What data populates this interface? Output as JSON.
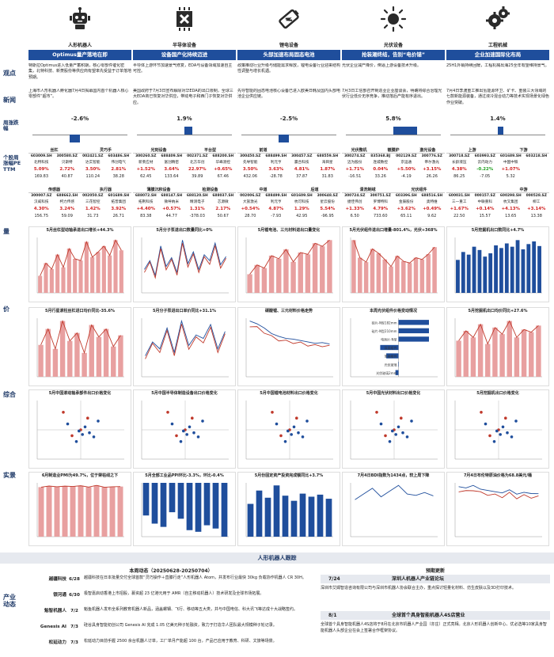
{
  "row_labels": {
    "view": "观点",
    "news": "新闻",
    "weekly": "周涨跌幅",
    "stocks": "个股周涨幅PE TTM",
    "volume": "量",
    "price": "价",
    "composite": "综合",
    "real": "实景",
    "dynamics": "产业动态"
  },
  "sectors": [
    {
      "name": "人形机器人",
      "icon": "robot-icon",
      "banner": "Optimus量产落地在即",
      "view": "特斯拉Optimus进入低量产蓄积期，核心零部件催化密集，北特科技、新菱股份等供应商有望率先受益于订单落地预期。",
      "news": "上海市人形机器人孵化器7月4日揭幕国内首个机器人核心零部件“超市”。",
      "weekly": "-2.6%",
      "weekly_value": -2.6,
      "groups": [
        {
          "label": "丝杠",
          "codes": [
            "603009.SH",
            "300580.SZ",
            "002421.SZ",
            "603486.SH"
          ],
          "names": [
            "北特科技",
            "贝斯特",
            "达实智能",
            "伟创电气"
          ],
          "chg": [
            "5.09%",
            "2.72%",
            "3.50%",
            "2.81%"
          ],
          "pe": [
            "169.83",
            "40.87",
            "110.24",
            "38.28"
          ],
          "subheads": [
            "丝杠",
            "灵巧手"
          ]
        },
        {
          "label": "传感器",
          "codes": [
            "300007.SZ",
            "688662.SH",
            "002050.SZ",
            "601689.SH"
          ],
          "names": [
            "汉威科技",
            "柯力传感",
            "三花智控",
            "拓普集团"
          ],
          "chg": [
            "4.30%",
            "3.24%",
            "1.42%",
            "3.92%"
          ],
          "pe": [
            "156.75",
            "59.09",
            "31.73",
            "26.71"
          ],
          "subheads": [
            "传感器",
            "执行器"
          ]
        }
      ]
    },
    {
      "name": "半导体设备",
      "icon": "chip-icon",
      "banner": "设备国产化持续迈进",
      "view": "半导体上游环节加速景气修复，EDA与设备领域加速自主可控。",
      "news": "美国政府于7月3日宣布解除对华EDA的出口限制，全球三大EDA商已恢复对华供应，带动电子和西门子恢复对华供应。",
      "weekly": "1.9%",
      "weekly_value": 1.9,
      "groups": [
        {
          "label": "光刻设备",
          "codes": [
            "300260.SZ",
            "688409.SH",
            "002371.SZ",
            "688200.SH"
          ],
          "names": [
            "新莱应材",
            "富创精密",
            "北方华创",
            "华峰测控"
          ],
          "chg": [
            "+1.52%",
            "3.64%",
            "22.97%",
            "+0.65%"
          ],
          "pe": [
            "62.45",
            "133.64",
            "39.89",
            "67.46"
          ],
          "subheads": [
            "光刻设备",
            "平台型"
          ]
        },
        {
          "label": "薄膜沉积设备",
          "codes": [
            "688072.SH",
            "688147.SH",
            "688120.SH",
            "688037.SH"
          ],
          "names": [
            "拓荆科技",
            "微导纳米",
            "精测电子",
            "芯源微"
          ],
          "chg": [
            "+4.40%",
            "+0.57%",
            "1.31%",
            "2.17%"
          ],
          "pe": [
            "83.38",
            "44.77",
            "-378.03",
            "50.67"
          ],
          "subheads": [
            "薄膜沉积设备",
            "检测设备"
          ]
        }
      ]
    },
    {
      "name": "锂电设备",
      "icon": "battery-icon",
      "banner": "头部加速布局固态电池",
      "view": "政策推动行业升级与储能需求释放，锂电设备行业迎来结构性调整与增长机遇。",
      "news": "先导智能的固态电池核心设备已进入欧美日韩及国内头部电池企业供应链。",
      "weekly": "-2.5%",
      "weekly_value": -2.5,
      "groups": [
        {
          "label": "前道",
          "codes": [
            "300450.SZ",
            "688499.SH",
            "300457.SZ",
            "688559.SH"
          ],
          "names": [
            "先导智能",
            "利元亨",
            "赢合科技",
            "海目星"
          ],
          "chg": [
            "3.50%",
            "3.63%",
            "4.81%",
            "1.87%"
          ],
          "pe": [
            "432.06",
            "-28.78",
            "37.87",
            "31.83"
          ],
          "subheads": [
            "前道",
            ""
          ]
        },
        {
          "label": "中道",
          "codes": [
            "002006.SZ",
            "688499.SH",
            "601609.SH",
            "300648.SZ"
          ],
          "names": [
            "大族激光",
            "利元亨",
            "杭可科技",
            "星云股份"
          ],
          "chg": [
            "+0.54%",
            "4.87%",
            "1.29%",
            "5.54%"
          ],
          "pe": [
            "28.70",
            "-7.93",
            "42.95",
            "-96.95"
          ],
          "subheads": [
            "中道",
            "后道"
          ]
        }
      ]
    },
    {
      "name": "光伏设备",
      "icon": "sun-icon",
      "banner": "抢装潮终结，告别“电价锚”",
      "view": "光伏企业减产降价，倒逼上游设备技术升级。",
      "news": "7月3日工信部召开制造业企业座谈会，明确将综合治理光伏行业低价无序竞争，推动落后产能有序退出。",
      "weekly": "5.8%",
      "weekly_value": 5.8,
      "groups": [
        {
          "label": "光伏整机",
          "codes": [
            "300274.SZ",
            "835368.BJ",
            "002129.SZ",
            "300776.SZ"
          ],
          "names": [
            "迈为股份",
            "连城数控",
            "京运通",
            "帝尔激光"
          ],
          "chg": [
            "+1.71%",
            "0.04%",
            "+5.50%",
            "+3.15%"
          ],
          "pe": [
            "-16.51",
            "33.26",
            "-4.19",
            "26.26"
          ],
          "subheads": [
            "光伏整机",
            "镀膜炉",
            "激光设备"
          ]
        },
        {
          "label": "清洗制绒",
          "codes": [
            "300724.SZ",
            "300751.SZ",
            "603396.SH",
            "688516.SH"
          ],
          "names": [
            "捷佳伟创",
            "罗博特科",
            "金辰股份",
            "奥特维"
          ],
          "chg": [
            "+1.33%",
            "4.79%",
            "+3.62%",
            "+0.49%"
          ],
          "pe": [
            "6.50",
            "733.60",
            "65.11",
            "9.62"
          ],
          "subheads": [
            "清洗制绒",
            "光伏组件"
          ]
        }
      ]
    },
    {
      "name": "工程机械",
      "icon": "gears-icon",
      "banner": "企业加速国际化布局",
      "view": "25H1外销持续回暖，工程机械出海25全年有望维持景气。",
      "news": "7月4日李渡重工推出氢能源环卫、矿卡、重装三大领域的七款新能源装备，通过液冷混合动力等技术实现场景化绿色作业突破。",
      "weekly": "1.4%",
      "weekly_value": 1.4,
      "groups": [
        {
          "label": "上游",
          "codes": [
            "300718.SZ",
            "603993.SZ",
            "601689.SH",
            "603218.SH"
          ],
          "names": [
            "长龄液压",
            "云内动力",
            "中国中铁",
            ""
          ],
          "chg": [
            "4.38%",
            "-0.22%",
            "+1.07%",
            ""
          ],
          "pe": [
            "86.25",
            "-7.05",
            "5.32",
            ""
          ],
          "subheads": [
            "上游",
            "下游"
          ]
        },
        {
          "label": "中游",
          "codes": [
            "600031.SH",
            "000157.SZ",
            "600298.SH",
            "000528.SZ"
          ],
          "names": [
            "三一重工",
            "中联重科",
            "杭叉集团",
            "柳工"
          ],
          "chg": [
            "+1.67%",
            "+0.14%",
            "+4.13%",
            "+3.14%"
          ],
          "pe": [
            "22.50",
            "15.57",
            "13.65",
            "13.38"
          ],
          "subheads": [
            "",
            "中游"
          ]
        }
      ]
    }
  ],
  "charts": {
    "volume": [
      {
        "title": "5月丝杠型动轴承进出口增长+44.3%",
        "legend": [
          "行星滚柱丝杠进口",
          "行星滚柱丝杠出口"
        ],
        "values": [
          20,
          35,
          28,
          45,
          30,
          52,
          40,
          38,
          60,
          42,
          48,
          55,
          44,
          62,
          50
        ],
        "kind": "bar-line"
      },
      {
        "title": "5月分子泵进出口数量同比+0%",
        "legend": [
          "分子泵进口数量",
          "分子泵出口数量"
        ],
        "values": [
          40,
          55,
          30,
          80,
          45,
          60,
          35,
          90,
          50,
          70,
          40,
          65,
          55,
          85,
          48,
          62
        ],
        "kind": "line2"
      },
      {
        "title": "5月锂电池、三元材料进出口量变化",
        "legend": [
          "锂电池出口",
          "三元材料出口"
        ],
        "values": [
          30,
          45,
          40,
          60,
          55,
          70,
          50,
          65,
          62,
          80,
          75,
          85
        ],
        "kind": "bar-line"
      },
      {
        "title": "5月光伏组件进出口增量-801.4%，光伏+368%",
        "legend": [
          "光伏组件出口",
          "光伏逆变器出口"
        ],
        "values": [
          60,
          40,
          35,
          50,
          45,
          38,
          30,
          42,
          36,
          34,
          40,
          38,
          44,
          52
        ],
        "kind": "bar-line"
      },
      {
        "title": "5月挖掘机出口数同比+4.7%",
        "legend": [
          "挖掘机出口",
          "同比"
        ],
        "values": [
          50,
          62,
          58,
          70,
          65,
          55,
          60,
          72,
          68,
          75,
          70,
          80,
          66,
          74,
          78,
          71
        ],
        "kind": "bar"
      }
    ],
    "price": [
      {
        "title": "5月行星滚柱丝杠进口均价同比-35.6%",
        "values": [
          40,
          60,
          35,
          70,
          45,
          55,
          30,
          65,
          50,
          60,
          38,
          52
        ],
        "kind": "bar-line"
      },
      {
        "title": "5月分子泵进出口单价同比+31.1%",
        "values": [
          30,
          50,
          40,
          70,
          35,
          80,
          45,
          60,
          55,
          75,
          40,
          65
        ],
        "kind": "line2"
      },
      {
        "title": "碳酸锂、三元材料价格走势",
        "values": [
          80,
          76,
          70,
          62,
          58,
          55,
          54,
          52,
          50,
          48,
          49,
          47
        ],
        "kind": "line2"
      },
      {
        "title": "本周光伏组件价格变动情况",
        "bars": [
          {
            "label": "硅片-N型182mm",
            "value": 1.0
          },
          {
            "label": "硅片-N型210mm",
            "value": 1.0
          },
          {
            "label": "电池片-N型",
            "value": 1.0
          },
          {
            "label": "双面组件",
            "value": -0.6
          },
          {
            "label": "单面组件",
            "value": -0.4
          },
          {
            "label": "光伏玻璃",
            "value": 0.0
          },
          {
            "label": "光伏玻璃2mm",
            "value": -0.1
          }
        ],
        "kind": "hbar"
      },
      {
        "title": "5月挖掘机出口均价同比+27.6%",
        "values": [
          55,
          70,
          60,
          80,
          50,
          75,
          65,
          85,
          60,
          72,
          68,
          78
        ],
        "kind": "bar-line"
      }
    ],
    "composite": [
      {
        "title": "5月中国滚动轴承部件出口价格变化"
      },
      {
        "title": "5月中国半导体制造设备出口价格变化"
      },
      {
        "title": "5月中国锂电池材料出口价格变化"
      },
      {
        "title": "5月中国光伏材料出口价格变化"
      },
      {
        "title": "5月挖掘机出口价格变化"
      }
    ],
    "real": [
      {
        "title": "6月制造业PMI为49.7%，位于荣枯线之下",
        "values": [
          49.1,
          50.2,
          49.5,
          50.1,
          49.8,
          50.5,
          49.2,
          50.8,
          49.0,
          49.5,
          49.7
        ],
        "kind": "bar-line"
      },
      {
        "title": "5月全部工业品PPI环比-3.3%，环比-0.4%",
        "values": [
          -2.0,
          -2.5,
          -2.7,
          -1.8,
          -2.2,
          -2.9,
          -3.0,
          -2.6,
          -2.8,
          -3.3
        ],
        "kind": "bar-neg"
      },
      {
        "title": "5月份固定资产投资完成额同比+3.7%",
        "values": [
          3.2,
          4.5,
          3.8,
          5.0,
          4.0,
          3.5,
          4.2,
          3.9,
          4.1,
          3.7
        ],
        "kind": "bar"
      },
      {
        "title": "7月4日BDI指数为1434点，较上周下降",
        "values": [
          1300,
          1500,
          1700,
          1400,
          1600,
          1800,
          1500,
          1450,
          1550,
          1434
        ],
        "kind": "line1"
      },
      {
        "title": "7月4日布伦特原油价格为68.8美元/桶",
        "values": [
          80,
          78,
          82,
          76,
          74,
          72,
          70,
          75,
          68,
          71,
          69,
          68.8
        ],
        "kind": "line2"
      }
    ]
  },
  "tracking_header": "人形机器人跟踪",
  "weekly_dynamics": {
    "title": "本周动态（20250628-20250704）",
    "items": [
      {
        "company": "越疆科技",
        "date": "6/28",
        "text": "越疆科技在日本批量交付全球首款“灵巧操作＋直膝行走”人形机器人 Atom，并发布行业最快 30kg 负载协作机器人 CR 30H。"
      },
      {
        "company": "银河通",
        "date": "6/30",
        "text": "极智嘉启动香港上市招股，募资超 23 亿港元用于 AMR（自主移动机器人）技术研发及全球市场拓展。"
      },
      {
        "company": "魁智机器人",
        "date": "7/2",
        "text": "魁鱼机器人发布全系列教育机器人新品，涵盖螺钿、飞行、移动等五大类，并与中国电信、科大讯飞等达成十大战略签约。"
      },
      {
        "company": "Genesis AI",
        "date": "7/3",
        "text": "硅谷具身智能初创公司 Genesis AI 完成 1.05 亿美元种子轮融资，致力于打造华人团队最大规模种子轮记录。"
      },
      {
        "company": "松延动力",
        "date": "7/3",
        "text": "松延动力目前手握 2500 余台机器人订单，工厂单月产能超 100 台，产品已应用于教育、科研、文旅等场景。"
      }
    ]
  },
  "preview": {
    "title": "预期更新",
    "events": [
      {
        "date": "7/24",
        "title": "深圳人机器人产业链论坛",
        "text": "深圳市艾姆智造咨询有限公司与深圳市机器人协会联合主办，重点探讨轻量化材料、仿生皮肤以及3D打印技术。"
      },
      {
        "date": "8/1",
        "title": "全球首个具身智能机器人4S店营业",
        "text": "全球首个具身智能机器人4S店将于8月在北京市机器人产业园（亦庄）正式亮相。北京人形机器人创新中心、优必选等10家具身智能机器人头部企业在会上签署合作框架协议。"
      }
    ]
  },
  "colors": {
    "banner": "#1f4e9c",
    "accent_red": "#c0392b",
    "line_blue": "#1f4e9c",
    "up": "#d02020",
    "down": "#20a020"
  }
}
